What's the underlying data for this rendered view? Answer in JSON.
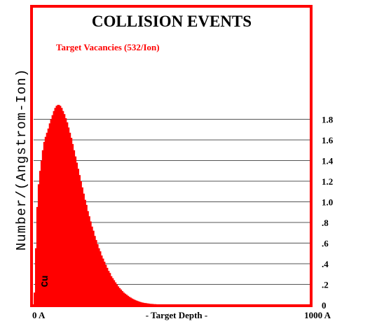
{
  "chart_data": {
    "type": "area",
    "title": "COLLISION EVENTS",
    "series": [
      {
        "name": "Target Vacancies (532/Ion)",
        "color": "#ff0000",
        "x": [
          0,
          5,
          10,
          15,
          20,
          25,
          30,
          35,
          40,
          45,
          50,
          55,
          60,
          65,
          70,
          75,
          80,
          85,
          90,
          95,
          100,
          105,
          110,
          115,
          120,
          125,
          130,
          135,
          140,
          145,
          150,
          155,
          160,
          165,
          170,
          175,
          180,
          185,
          190,
          195,
          200,
          205,
          210,
          215,
          220,
          225,
          230,
          235,
          240,
          245,
          250,
          255,
          260,
          265,
          270,
          275,
          280,
          285,
          290,
          295,
          300,
          305,
          310,
          315,
          320,
          325,
          330,
          335,
          340,
          345,
          350,
          355,
          360,
          365,
          370,
          375,
          380,
          385,
          390,
          395,
          400,
          405,
          410,
          415,
          420,
          425,
          430,
          435,
          440,
          445,
          450,
          455,
          460,
          465,
          470,
          475,
          480,
          485,
          490,
          495,
          500,
          510,
          520,
          530,
          540,
          550,
          560,
          570,
          580,
          590,
          600,
          620,
          640,
          660,
          680,
          700,
          720,
          740,
          760,
          780,
          800,
          850,
          900,
          950,
          1000
        ],
        "y": [
          0.12,
          0.55,
          0.95,
          1.17,
          1.3,
          1.4,
          1.5,
          1.58,
          1.63,
          1.67,
          1.71,
          1.76,
          1.8,
          1.84,
          1.88,
          1.91,
          1.93,
          1.94,
          1.94,
          1.93,
          1.91,
          1.88,
          1.85,
          1.81,
          1.77,
          1.72,
          1.67,
          1.62,
          1.56,
          1.5,
          1.44,
          1.38,
          1.32,
          1.26,
          1.2,
          1.14,
          1.08,
          1.02,
          0.97,
          0.91,
          0.86,
          0.81,
          0.76,
          0.72,
          0.67,
          0.63,
          0.59,
          0.55,
          0.52,
          0.48,
          0.45,
          0.42,
          0.39,
          0.36,
          0.33,
          0.31,
          0.28,
          0.26,
          0.24,
          0.22,
          0.2,
          0.18,
          0.165,
          0.15,
          0.135,
          0.12,
          0.11,
          0.1,
          0.09,
          0.08,
          0.072,
          0.064,
          0.057,
          0.05,
          0.044,
          0.039,
          0.034,
          0.03,
          0.026,
          0.023,
          0.02,
          0.018,
          0.016,
          0.014,
          0.012,
          0.011,
          0.01,
          0.009,
          0.008,
          0.007,
          0.006,
          0.006,
          0.005,
          0.005,
          0.004,
          0.004,
          0.004,
          0.003,
          0.003,
          0.003,
          0.003,
          0.002,
          0.002,
          0.002,
          0.002,
          0.002,
          0.001,
          0.001,
          0.001,
          0.001,
          0.001,
          0.001,
          0.001,
          0,
          0,
          0,
          0,
          0,
          0,
          0,
          0,
          0,
          0,
          0,
          0
        ]
      }
    ],
    "ylabel": "Number/(Angstrom-Ion)",
    "xlabel": "- Target Depth -",
    "x_start_label": "0 A",
    "x_end_label": "1000 A",
    "xlim": [
      0,
      1000
    ],
    "ylim": [
      0,
      2.0
    ],
    "yticks": [
      {
        "value": 0,
        "label": "0"
      },
      {
        "value": 0.2,
        "label": ".2"
      },
      {
        "value": 0.4,
        "label": ".4"
      },
      {
        "value": 0.6,
        "label": ".6"
      },
      {
        "value": 0.8,
        "label": ".8"
      },
      {
        "value": 1.0,
        "label": "1.0"
      },
      {
        "value": 1.2,
        "label": "1.2"
      },
      {
        "value": 1.4,
        "label": "1.4"
      },
      {
        "value": 1.6,
        "label": "1.6"
      },
      {
        "value": 1.8,
        "label": "1.8"
      }
    ],
    "grid": true,
    "legend": "top-left",
    "target_element": "Cu"
  }
}
